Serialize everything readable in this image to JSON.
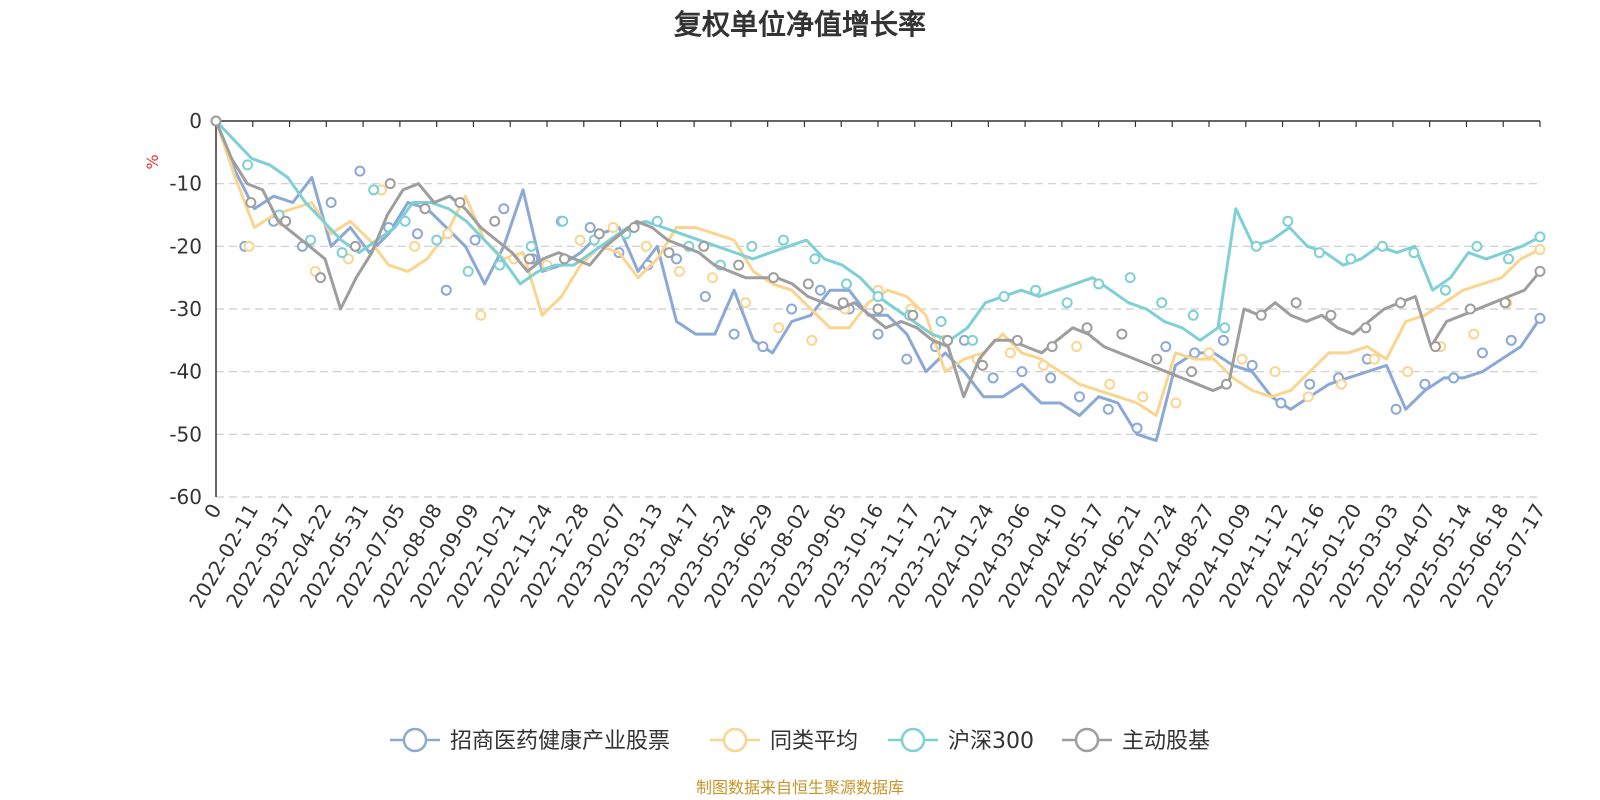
{
  "chart_data": {
    "type": "line",
    "title": "复权单位净值增长率",
    "ylabel": "%",
    "xlabel": "",
    "ylim": [
      -60,
      0
    ],
    "yticks": [
      0,
      -10,
      -20,
      -30,
      -40,
      -50,
      -60
    ],
    "grid": true,
    "legend_position": "bottom",
    "x_tick_labels": [
      "0",
      "2022-02-11",
      "2022-03-17",
      "2022-04-22",
      "2022-05-31",
      "2022-07-05",
      "2022-08-08",
      "2022-09-09",
      "2022-10-21",
      "2022-11-24",
      "2022-12-28",
      "2023-02-07",
      "2023-03-13",
      "2023-04-17",
      "2023-05-24",
      "2023-06-29",
      "2023-08-02",
      "2023-09-05",
      "2023-10-16",
      "2023-11-17",
      "2023-12-21",
      "2024-01-24",
      "2024-03-06",
      "2024-04-10",
      "2024-05-17",
      "2024-06-21",
      "2024-07-24",
      "2024-08-27",
      "2024-10-09",
      "2024-11-12",
      "2024-12-16",
      "2025-01-20",
      "2025-03-03",
      "2025-04-07",
      "2025-05-14",
      "2025-06-18",
      "2025-07-17"
    ],
    "series": [
      {
        "name": "招商医药健康产业股票",
        "color": "#8ba9d6",
        "values": [
          0,
          -8,
          -14,
          -12,
          -13,
          -9,
          -20,
          -17,
          -21,
          -18,
          -13,
          -14,
          -17,
          -20,
          -26,
          -20,
          -11,
          -24,
          -23,
          -21,
          -18,
          -17,
          -24,
          -20,
          -32,
          -34,
          -34,
          -27,
          -35,
          -37,
          -32,
          -31,
          -27,
          -27,
          -31,
          -31,
          -34,
          -40,
          -37,
          -40,
          -44,
          -44,
          -42,
          -45,
          -45,
          -47,
          -44,
          -45,
          -50,
          -51,
          -39,
          -37,
          -37,
          -39,
          -40,
          -44,
          -46,
          -44,
          -42,
          -41,
          -40,
          -39,
          -46,
          -43,
          -41,
          -41,
          -40,
          -38,
          -36,
          -31.5
        ],
        "markers": [
          0,
          -20,
          -16,
          -20,
          -13,
          -8,
          -17,
          -18,
          -27,
          -19,
          -14,
          -22,
          -16,
          -17,
          -21,
          -23,
          -22,
          -28,
          -34,
          -36,
          -30,
          -27,
          -30,
          -34,
          -38,
          -36,
          -35,
          -41,
          -40,
          -41,
          -44,
          -46,
          -49,
          -36,
          -37,
          -35,
          -39,
          -45,
          -42,
          -41,
          -38,
          -46,
          -42,
          -41,
          -37,
          -35,
          -31.5
        ]
      },
      {
        "name": "同类平均",
        "color": "#fad590",
        "values": [
          0,
          -9,
          -17,
          -15,
          -14,
          -13,
          -18,
          -16,
          -19,
          -23,
          -24,
          -22,
          -18,
          -12,
          -19,
          -22,
          -21,
          -31,
          -28,
          -23,
          -20,
          -21,
          -25,
          -22,
          -17,
          -17,
          -18,
          -19,
          -24,
          -26,
          -27,
          -30,
          -33,
          -33,
          -29,
          -27,
          -28,
          -31,
          -40,
          -38,
          -37,
          -34,
          -37,
          -38,
          -40,
          -42,
          -43,
          -44,
          -45,
          -47,
          -37,
          -38,
          -38,
          -41,
          -43,
          -44,
          -43,
          -40,
          -37,
          -37,
          -36,
          -38,
          -32,
          -31,
          -29,
          -27,
          -26,
          -25,
          -22,
          -20.5
        ],
        "markers": [
          0,
          -20,
          -16,
          -24,
          -22,
          -11,
          -20,
          -18,
          -31,
          -22,
          -23,
          -19,
          -17,
          -20,
          -24,
          -25,
          -29,
          -33,
          -35,
          -30,
          -27,
          -30,
          -35,
          -38,
          -37,
          -39,
          -36,
          -42,
          -44,
          -45,
          -37,
          -38,
          -40,
          -44,
          -42,
          -38,
          -40,
          -36,
          -34,
          -29,
          -20.5
        ]
      },
      {
        "name": "沪深300",
        "color": "#7fd0d4",
        "values": [
          0,
          -3,
          -6,
          -7,
          -9,
          -13,
          -16,
          -19,
          -21,
          -19,
          -17,
          -13,
          -13,
          -14,
          -16,
          -19,
          -22,
          -26,
          -24,
          -23,
          -23,
          -21,
          -19,
          -17,
          -16,
          -17,
          -18,
          -19,
          -20,
          -21,
          -22,
          -21,
          -20,
          -19,
          -22,
          -23,
          -25,
          -28,
          -30,
          -32,
          -34,
          -35,
          -33,
          -29,
          -28,
          -27,
          -28,
          -27,
          -26,
          -25,
          -27,
          -29,
          -30,
          -32,
          -33,
          -35,
          -33,
          -14,
          -20,
          -19,
          -17,
          -20,
          -21,
          -23,
          -22,
          -20,
          -21,
          -20,
          -27,
          -25,
          -21,
          -22,
          -21,
          -20,
          -18.5
        ],
        "markers": [
          0,
          -7,
          -15,
          -19,
          -21,
          -11,
          -16,
          -19,
          -24,
          -23,
          -20,
          -16,
          -19,
          -18,
          -16,
          -20,
          -23,
          -20,
          -19,
          -22,
          -26,
          -28,
          -31,
          -32,
          -35,
          -28,
          -27,
          -29,
          -26,
          -25,
          -29,
          -31,
          -33,
          -20,
          -16,
          -21,
          -22,
          -20,
          -21,
          -27,
          -20,
          -22,
          -18.5
        ]
      },
      {
        "name": "主动股基",
        "color": "#9e9e9e",
        "values": [
          0,
          -6,
          -10,
          -11,
          -16,
          -18,
          -20,
          -22,
          -30,
          -25,
          -21,
          -15,
          -11,
          -10,
          -13,
          -12,
          -14,
          -17,
          -19,
          -21,
          -24,
          -22,
          -21,
          -22,
          -23,
          -20,
          -18,
          -16,
          -17,
          -19,
          -20,
          -21,
          -23,
          -24,
          -25,
          -25,
          -25,
          -26,
          -28,
          -29,
          -30,
          -29,
          -31,
          -33,
          -32,
          -33,
          -35,
          -36,
          -44,
          -38,
          -35,
          -35,
          -36,
          -37,
          -35,
          -33,
          -34,
          -36,
          -37,
          -38,
          -39,
          -40,
          -41,
          -42,
          -43,
          -42,
          -30,
          -31,
          -29,
          -31,
          -32,
          -31,
          -33,
          -34,
          -32,
          -30,
          -29,
          -28,
          -36,
          -32,
          -31,
          -30,
          -29,
          -28,
          -27,
          -24
        ],
        "markers": [
          0,
          -13,
          -16,
          -25,
          -20,
          -10,
          -14,
          -13,
          -16,
          -22,
          -22,
          -18,
          -17,
          -21,
          -20,
          -23,
          -25,
          -26,
          -29,
          -30,
          -31,
          -35,
          -39,
          -35,
          -36,
          -33,
          -34,
          -38,
          -40,
          -42,
          -31,
          -29,
          -31,
          -33,
          -29,
          -36,
          -30,
          -29,
          -24
        ]
      }
    ]
  },
  "source_note": "制图数据来自恒生聚源数据库"
}
